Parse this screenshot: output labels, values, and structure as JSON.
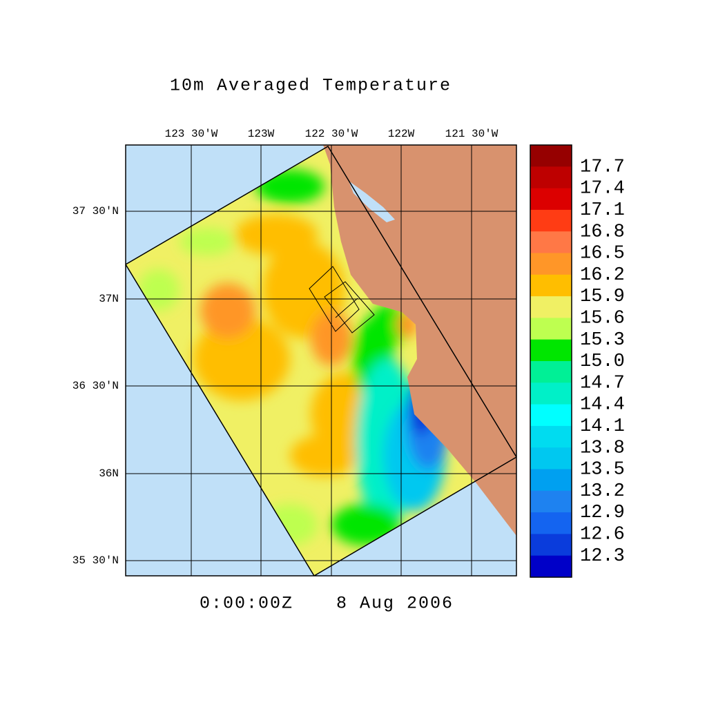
{
  "title": "10m Averaged Temperature",
  "time": "0:00:00Z",
  "date": "8 Aug 2006",
  "longitudes": [
    "123 30'W",
    "123W",
    "122 30'W",
    "122W",
    "121 30'W"
  ],
  "latitudes": [
    "37 30'N",
    "37N",
    "36 30'N",
    "36N",
    "35 30'N"
  ],
  "colorbar": {
    "labels": [
      "17.7",
      "17.4",
      "17.1",
      "16.8",
      "16.5",
      "16.2",
      "15.9",
      "15.6",
      "15.3",
      "15.0",
      "14.7",
      "14.4",
      "14.1",
      "13.8",
      "13.5",
      "13.2",
      "12.9",
      "12.6",
      "12.3"
    ],
    "colors": [
      "#960000",
      "#be0000",
      "#dc0000",
      "#ff3c14",
      "#ff7846",
      "#ff9628",
      "#ffbe00",
      "#f0f064",
      "#beff50",
      "#00e600",
      "#00f096",
      "#00f0c8",
      "#00ffff",
      "#00dcf0",
      "#00c8f0",
      "#00a0f0",
      "#1e82f0",
      "#1464f0",
      "#0a3cdc",
      "#0000c8"
    ]
  }
}
